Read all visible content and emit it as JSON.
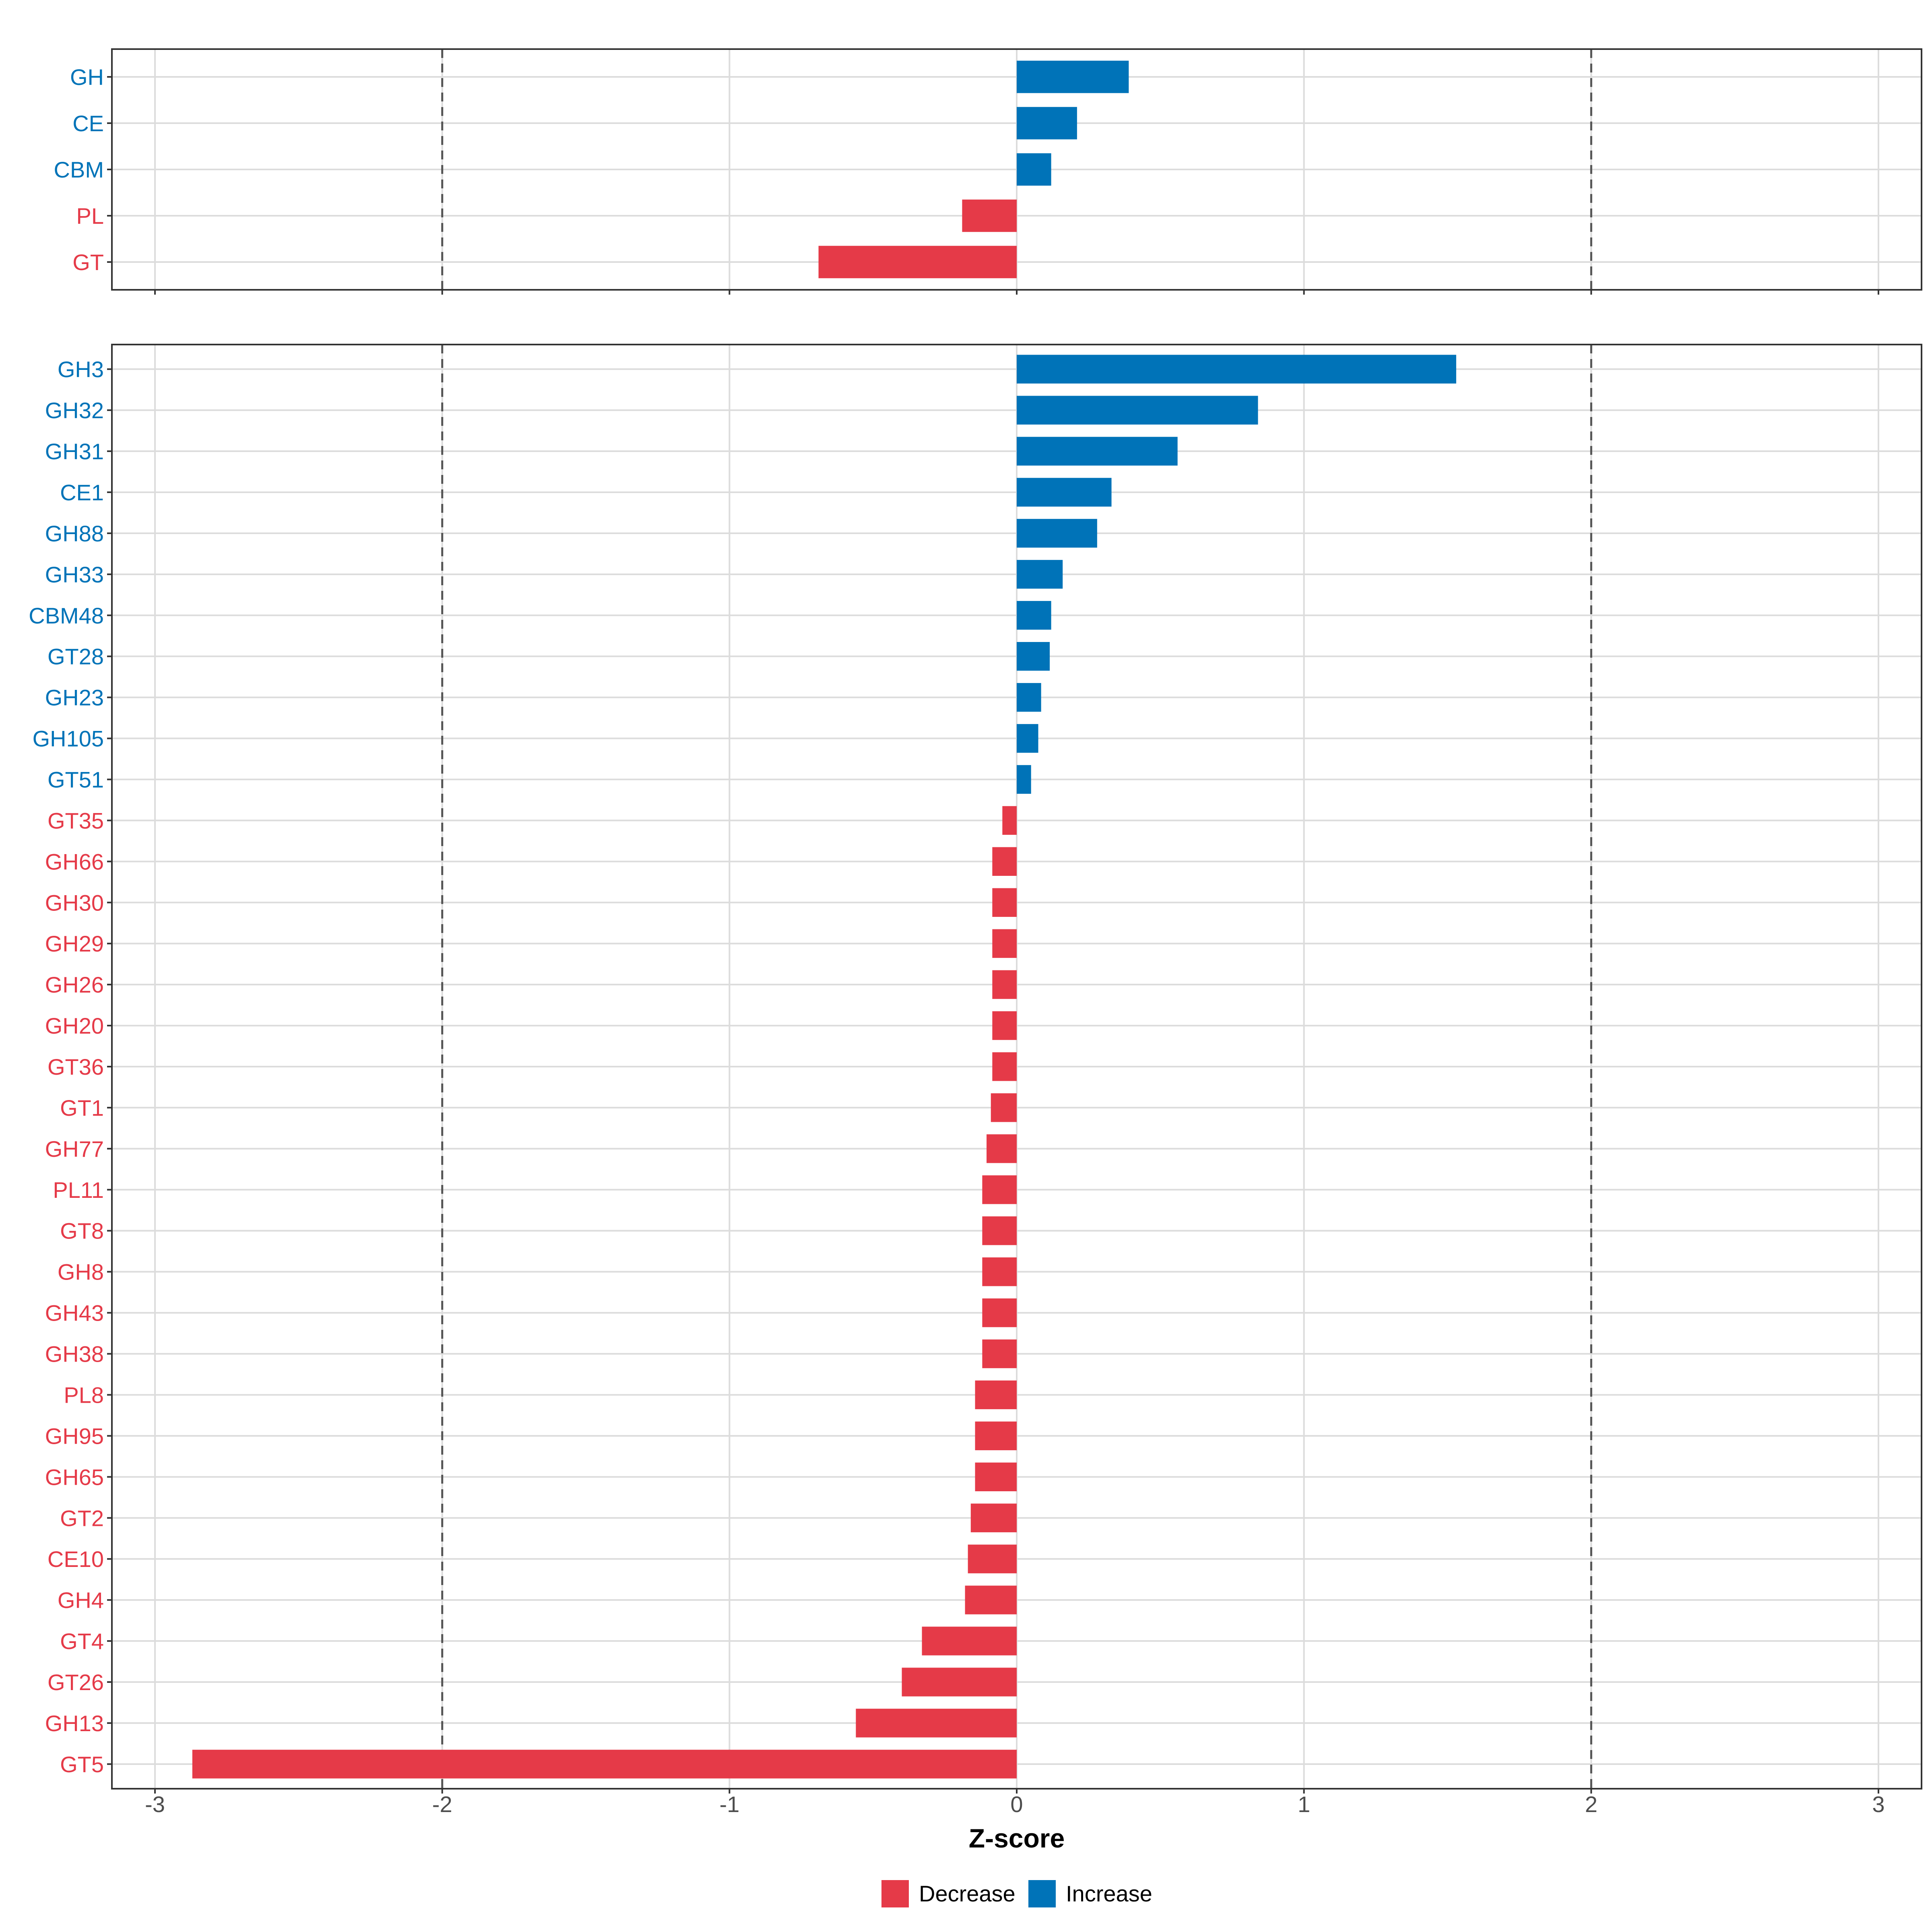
{
  "colors": {
    "increase": "#0073B8",
    "decrease": "#E53A48",
    "grid": "#DCDCDC",
    "panel_border": "#333333",
    "ref_line": "#555555",
    "tick_text": "#4D4D4D"
  },
  "chart_data": [
    {
      "type": "bar",
      "orientation": "horizontal",
      "panel": "class-level",
      "categories": [
        "GH",
        "CE",
        "CBM",
        "PL",
        "GT"
      ],
      "values": [
        0.39,
        0.21,
        0.12,
        -0.19,
        -0.69
      ],
      "xlim": [
        -3.15,
        3.15
      ],
      "xticks": [
        -3,
        -2,
        -1,
        0,
        1,
        2,
        3
      ],
      "reference_lines": [
        -2,
        2
      ],
      "grid": true
    },
    {
      "type": "bar",
      "orientation": "horizontal",
      "panel": "family-level",
      "categories": [
        "GH3",
        "GH32",
        "GH31",
        "CE1",
        "GH88",
        "GH33",
        "CBM48",
        "GT28",
        "GH23",
        "GH105",
        "GT51",
        "GT35",
        "GH66",
        "GH30",
        "GH29",
        "GH26",
        "GH20",
        "GT36",
        "GT1",
        "GH77",
        "PL11",
        "GT8",
        "GH8",
        "GH43",
        "GH38",
        "PL8",
        "GH95",
        "GH65",
        "GT2",
        "CE10",
        "GH4",
        "GT4",
        "GT26",
        "GH13",
        "GT5"
      ],
      "values": [
        1.53,
        0.84,
        0.56,
        0.33,
        0.28,
        0.16,
        0.12,
        0.115,
        0.085,
        0.075,
        0.05,
        -0.05,
        -0.085,
        -0.085,
        -0.085,
        -0.085,
        -0.085,
        -0.085,
        -0.09,
        -0.105,
        -0.12,
        -0.12,
        -0.12,
        -0.12,
        -0.12,
        -0.145,
        -0.145,
        -0.145,
        -0.16,
        -0.17,
        -0.18,
        -0.33,
        -0.4,
        -0.56,
        -2.87
      ],
      "xlim": [
        -3.15,
        3.15
      ],
      "xticks": [
        -3,
        -2,
        -1,
        0,
        1,
        2,
        3
      ],
      "reference_lines": [
        -2,
        2
      ],
      "grid": true
    }
  ],
  "axis": {
    "xlabel": "Z-score",
    "tick_labels": [
      "-3",
      "-2",
      "-1",
      "0",
      "1",
      "2",
      "3"
    ]
  },
  "legend": {
    "placement": "bottom",
    "items": [
      {
        "label": "Decrease",
        "color_key": "decrease"
      },
      {
        "label": "Increase",
        "color_key": "increase"
      }
    ]
  }
}
